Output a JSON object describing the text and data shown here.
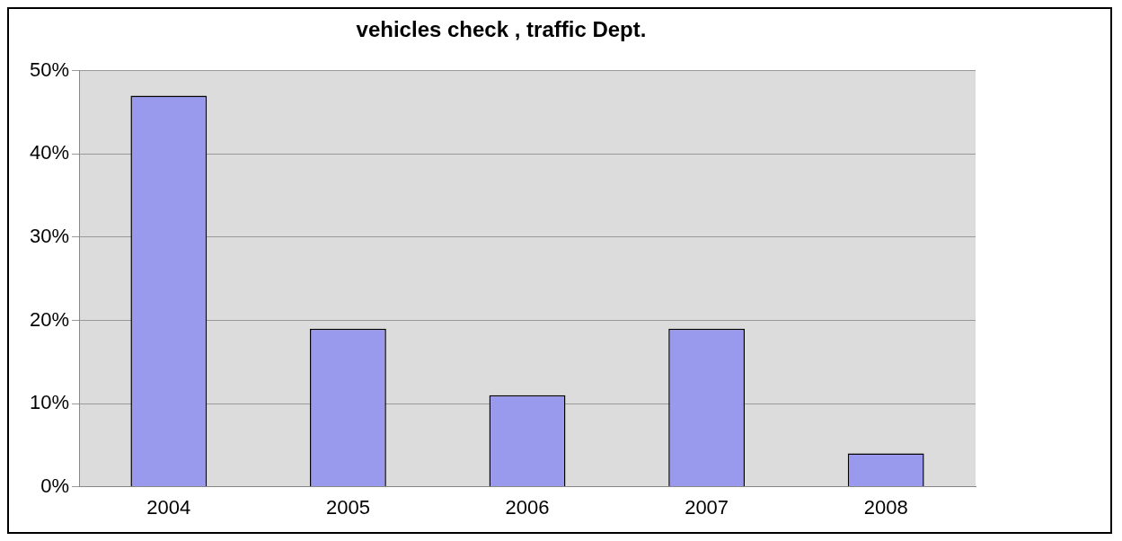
{
  "chart_data": {
    "type": "bar",
    "title": "vehicles check , traffic Dept.",
    "categories": [
      "2004",
      "2005",
      "2006",
      "2007",
      "2008"
    ],
    "values": [
      47,
      19,
      11,
      19,
      4
    ],
    "color": "#9999ee",
    "ylim": [
      0,
      50
    ],
    "yticks": [
      {
        "value": 0,
        "label": "0%"
      },
      {
        "value": 10,
        "label": "10%"
      },
      {
        "value": 20,
        "label": "20%"
      },
      {
        "value": 30,
        "label": "30%"
      },
      {
        "value": 40,
        "label": "40%"
      },
      {
        "value": 50,
        "label": "50%"
      }
    ],
    "grid": "y",
    "legend": false
  }
}
